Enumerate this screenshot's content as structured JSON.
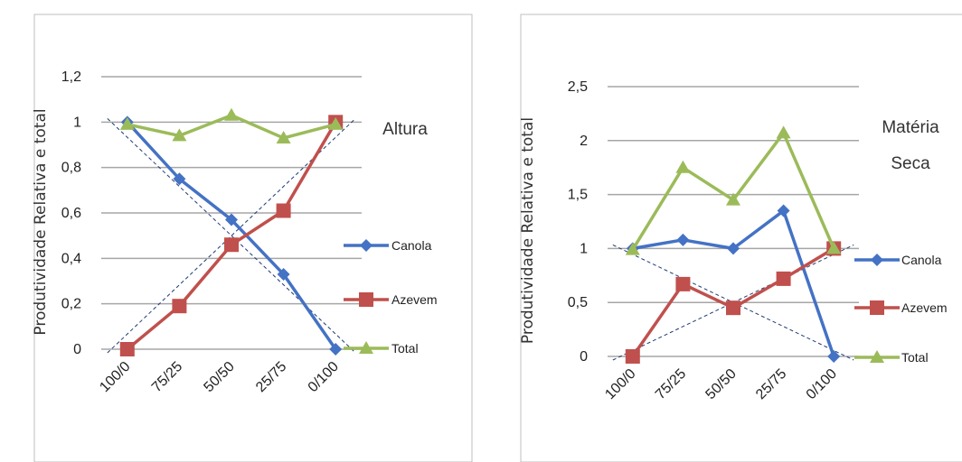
{
  "chart_data": [
    {
      "type": "line",
      "ylabel": "Produtividade Relativa e total",
      "annotation": [
        "Altura"
      ],
      "categories": [
        "100/0",
        "75/25",
        "50/50",
        "25/75",
        "0/100"
      ],
      "yticks": [
        "0",
        "0,2",
        "0,4",
        "0,6",
        "0,8",
        "1",
        "1,2"
      ],
      "ylim": [
        0,
        1.2
      ],
      "grid": true,
      "legend_position": "right",
      "series": [
        {
          "name": "Canola",
          "color": "#4472C4",
          "marker": "diamond",
          "values": [
            1.0,
            0.75,
            0.57,
            0.33,
            0.0
          ]
        },
        {
          "name": "Azevem",
          "color": "#C0504D",
          "marker": "square",
          "values": [
            0.0,
            0.19,
            0.46,
            0.61,
            1.0
          ]
        },
        {
          "name": "Total",
          "color": "#9BBB59",
          "marker": "triangle",
          "values": [
            0.99,
            0.94,
            1.03,
            0.93,
            0.99
          ]
        }
      ],
      "reference_lines": "dashed diagonals from 1 to 0 and 0 to 1"
    },
    {
      "type": "line",
      "ylabel": "Produtividade Relativa e total",
      "annotation": [
        "Matéria",
        "Seca"
      ],
      "categories": [
        "100/0",
        "75/25",
        "50/50",
        "25/75",
        "0/100"
      ],
      "yticks": [
        "0",
        "0,5",
        "1",
        "1,5",
        "2",
        "2,5"
      ],
      "ylim": [
        0,
        2.5
      ],
      "grid": true,
      "legend_position": "right",
      "series": [
        {
          "name": "Canola",
          "color": "#4472C4",
          "marker": "diamond",
          "values": [
            1.0,
            1.08,
            1.0,
            1.35,
            0.0
          ]
        },
        {
          "name": "Azevem",
          "color": "#C0504D",
          "marker": "square",
          "values": [
            0.0,
            0.67,
            0.45,
            0.72,
            1.0
          ]
        },
        {
          "name": "Total",
          "color": "#9BBB59",
          "marker": "triangle",
          "values": [
            0.99,
            1.75,
            1.45,
            2.07,
            1.0
          ]
        }
      ],
      "reference_lines": "dashed diagonals from 1 to 0 and 0 to 1"
    }
  ]
}
